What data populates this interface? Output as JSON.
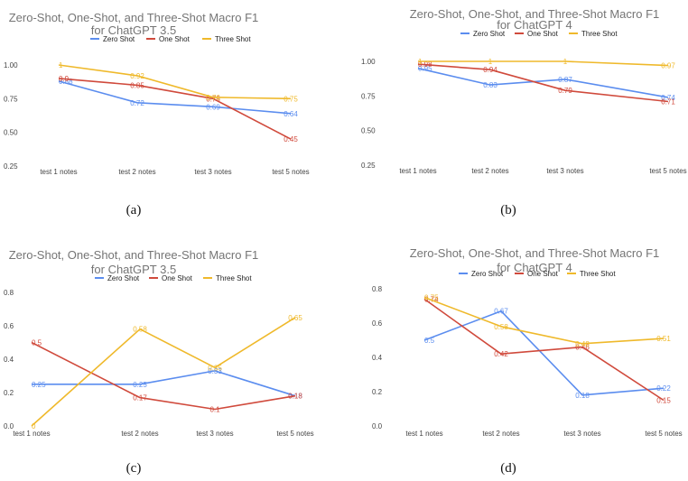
{
  "colors": {
    "zero": "#5b8def",
    "one": "#d04a3c",
    "three": "#efb92b"
  },
  "chart_data": [
    {
      "type": "line",
      "title": "Zero-Shot, One-Shot, and Three-Shot Macro F1",
      "subtitle": "for ChatGPT 3.5",
      "caption": "(a)",
      "categories": [
        "test 1 notes",
        "test 2 notes",
        "test 3 notes",
        "test 5 notes"
      ],
      "yticks": [
        "0.25",
        "0.50",
        "0.75",
        "1.00"
      ],
      "ylim": [
        0.25,
        1.0
      ],
      "legend": "top",
      "series": [
        {
          "name": "Zero Shot",
          "key": "zero",
          "values": [
            0.88,
            0.72,
            0.69,
            0.64
          ],
          "labels": [
            "0.88",
            "0.72",
            "0.69",
            "0.64"
          ]
        },
        {
          "name": "One Shot",
          "key": "one",
          "values": [
            0.9,
            0.85,
            0.75,
            0.45
          ],
          "labels": [
            "0.9",
            "0.85",
            "0.75",
            "0.45"
          ]
        },
        {
          "name": "Three Shot",
          "key": "three",
          "values": [
            1.0,
            0.92,
            0.76,
            0.75
          ],
          "labels": [
            "1",
            "0.92",
            "0.76",
            "0.75"
          ]
        }
      ]
    },
    {
      "type": "line",
      "title": "Zero-Shot, One-Shot, and Three-Shot Macro F1",
      "subtitle": "for ChatGPT 4",
      "caption": "(b)",
      "categories": [
        "test 1 notes",
        "test 2 notes",
        "test 3 notes",
        "test 5 notes"
      ],
      "yticks": [
        "0.25",
        "0.50",
        "0.75",
        "1.00"
      ],
      "ylim": [
        0.25,
        1.0
      ],
      "legend": "top",
      "series": [
        {
          "name": "Zero Shot",
          "key": "zero",
          "values": [
            0.95,
            0.83,
            0.87,
            0.74
          ],
          "labels": [
            "0.95",
            "0.83",
            "0.87",
            "0.74"
          ]
        },
        {
          "name": "One Shot",
          "key": "one",
          "values": [
            0.98,
            0.94,
            0.79,
            0.71
          ],
          "labels": [
            "0.98",
            "0.94",
            "0.79",
            "0.71"
          ]
        },
        {
          "name": "Three Shot",
          "key": "three",
          "values": [
            1.0,
            1.0,
            1.0,
            0.97
          ],
          "labels": [
            "1",
            "1",
            "1",
            "0.97"
          ]
        }
      ]
    },
    {
      "type": "line",
      "title": "Zero-Shot, One-Shot, and Three-Shot Macro F1",
      "subtitle": "for ChatGPT 3.5",
      "caption": "(c)",
      "categories": [
        "test 1 notes",
        "test 2 notes",
        "test 3 notes",
        "test 5 notes"
      ],
      "yticks": [
        "0.0",
        "0.2",
        "0.4",
        "0.6",
        "0.8"
      ],
      "ylim": [
        0.0,
        0.8
      ],
      "legend": "top",
      "series": [
        {
          "name": "Zero Shot",
          "key": "zero",
          "values": [
            0.25,
            0.25,
            0.33,
            0.18
          ],
          "labels": [
            "0.25",
            "0.25",
            "0.33",
            "0.18"
          ]
        },
        {
          "name": "One Shot",
          "key": "one",
          "values": [
            0.5,
            0.17,
            0.1,
            0.18
          ],
          "labels": [
            "0.5",
            "0.17",
            "0.1",
            "0.18"
          ]
        },
        {
          "name": "Three Shot",
          "key": "three",
          "values": [
            0.0,
            0.58,
            0.35,
            0.65
          ],
          "labels": [
            "0",
            "0.58",
            "0.35",
            "0.65"
          ]
        }
      ]
    },
    {
      "type": "line",
      "title": "Zero-Shot, One-Shot, and Three-Shot Macro F1",
      "subtitle": "for ChatGPT 4",
      "caption": "(d)",
      "categories": [
        "test 1 notes",
        "test 2 notes",
        "test 3 notes",
        "test 5 notes"
      ],
      "yticks": [
        "0.0",
        "0.2",
        "0.4",
        "0.6",
        "0.8"
      ],
      "ylim": [
        0.0,
        0.8
      ],
      "legend": "top",
      "series": [
        {
          "name": "Zero Shot",
          "key": "zero",
          "values": [
            0.5,
            0.67,
            0.18,
            0.22
          ],
          "labels": [
            "0.5",
            "0.67",
            "0.18",
            "0.22"
          ]
        },
        {
          "name": "One Shot",
          "key": "one",
          "values": [
            0.74,
            0.42,
            0.46,
            0.15
          ],
          "labels": [
            "0.74",
            "0.42",
            "0.46",
            "0.15"
          ]
        },
        {
          "name": "Three Shot",
          "key": "three",
          "values": [
            0.75,
            0.58,
            0.48,
            0.51
          ],
          "labels": [
            "0.75",
            "0.58",
            "0.48",
            "0.51"
          ]
        }
      ]
    }
  ]
}
